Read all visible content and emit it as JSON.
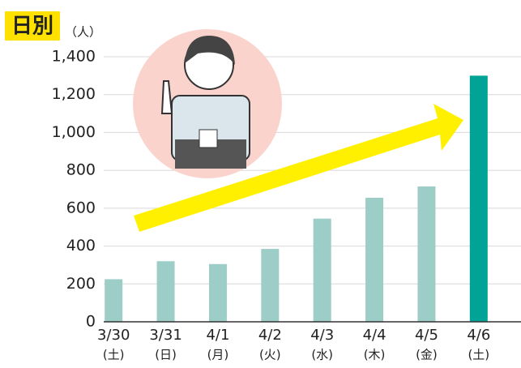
{
  "chart_data": {
    "type": "bar",
    "title": "日別",
    "unit_label": "（人）",
    "categories": [
      "3/30",
      "3/31",
      "4/1",
      "4/2",
      "4/3",
      "4/4",
      "4/5",
      "4/6"
    ],
    "category_sublabels": [
      "(土)",
      "(日)",
      "(月)",
      "(火)",
      "(水)",
      "(木)",
      "(金)",
      "(土)"
    ],
    "values": [
      225,
      320,
      305,
      385,
      545,
      655,
      715,
      1300
    ],
    "colors": [
      "#9dcdc7",
      "#9dcdc7",
      "#9dcdc7",
      "#9dcdc7",
      "#9dcdc7",
      "#9dcdc7",
      "#9dcdc7",
      "#00a395"
    ],
    "ylim": [
      0,
      1400
    ],
    "yticks": [
      0,
      200,
      400,
      600,
      800,
      {
        "value": 1000,
        "label": "1,000"
      },
      {
        "value": 1200,
        "label": "1,200"
      },
      {
        "value": 1400,
        "label": "1,400"
      }
    ],
    "grid": true
  }
}
